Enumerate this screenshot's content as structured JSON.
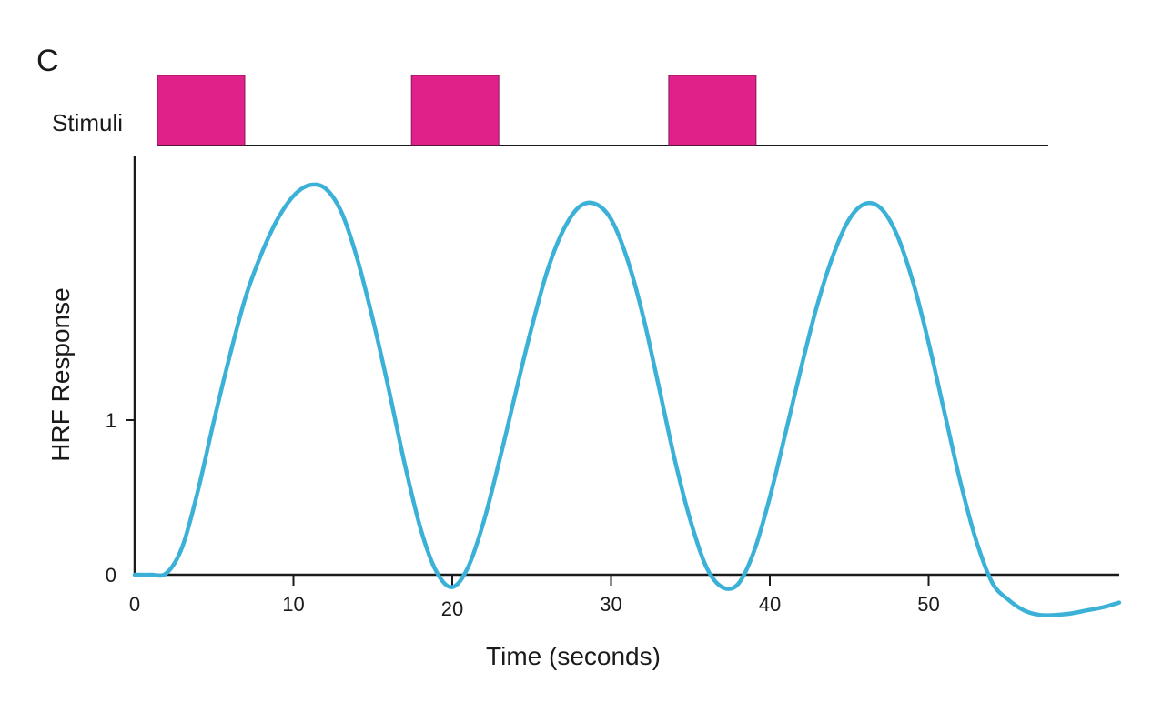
{
  "panel_label": "C",
  "stimuli": {
    "label": "Stimuli",
    "color": "#e0218a",
    "blocks": [
      {
        "start": 1.5,
        "end": 7
      },
      {
        "start": 17.5,
        "end": 23
      },
      {
        "start": 33.7,
        "end": 39.2
      }
    ]
  },
  "chart_data": {
    "type": "line",
    "title": "",
    "xlabel": "Time (seconds)",
    "ylabel": "HRF Response",
    "xlim": [
      0,
      62
    ],
    "ylim": [
      -0.3,
      2.7
    ],
    "xticks": [
      0,
      10,
      20,
      30,
      40,
      50
    ],
    "xtick_labels": [
      "0",
      "10",
      "20",
      "30",
      "40",
      "50"
    ],
    "yticks": [
      0,
      1
    ],
    "ytick_labels": [
      "0",
      "1"
    ],
    "grid": false,
    "series": [
      {
        "color": "#3cb1d8",
        "x": [
          0,
          1,
          2,
          3,
          4,
          5,
          6,
          7,
          8,
          9,
          10,
          11,
          12,
          13,
          14,
          15,
          16,
          17,
          18,
          19,
          20,
          21,
          22,
          23,
          24,
          25,
          26,
          27,
          28,
          29,
          30,
          31,
          32,
          33,
          34,
          35,
          36,
          37,
          38,
          39,
          40,
          41,
          42,
          43,
          44,
          45,
          46,
          47,
          48,
          49,
          50,
          51,
          52,
          53,
          54,
          55,
          56,
          57,
          58,
          59,
          60,
          61,
          62
        ],
        "y": [
          0,
          0,
          0.01,
          0.18,
          0.55,
          1.0,
          1.42,
          1.8,
          2.08,
          2.3,
          2.45,
          2.52,
          2.5,
          2.35,
          2.05,
          1.65,
          1.2,
          0.72,
          0.3,
          0.02,
          -0.08,
          0.05,
          0.35,
          0.75,
          1.18,
          1.6,
          1.97,
          2.23,
          2.38,
          2.4,
          2.3,
          2.05,
          1.68,
          1.22,
          0.75,
          0.35,
          0.05,
          -0.08,
          -0.06,
          0.15,
          0.5,
          0.92,
          1.35,
          1.75,
          2.07,
          2.3,
          2.4,
          2.37,
          2.2,
          1.9,
          1.5,
          1.05,
          0.6,
          0.22,
          -0.05,
          -0.16,
          -0.23,
          -0.26,
          -0.26,
          -0.25,
          -0.23,
          -0.21,
          -0.18
        ]
      }
    ]
  }
}
